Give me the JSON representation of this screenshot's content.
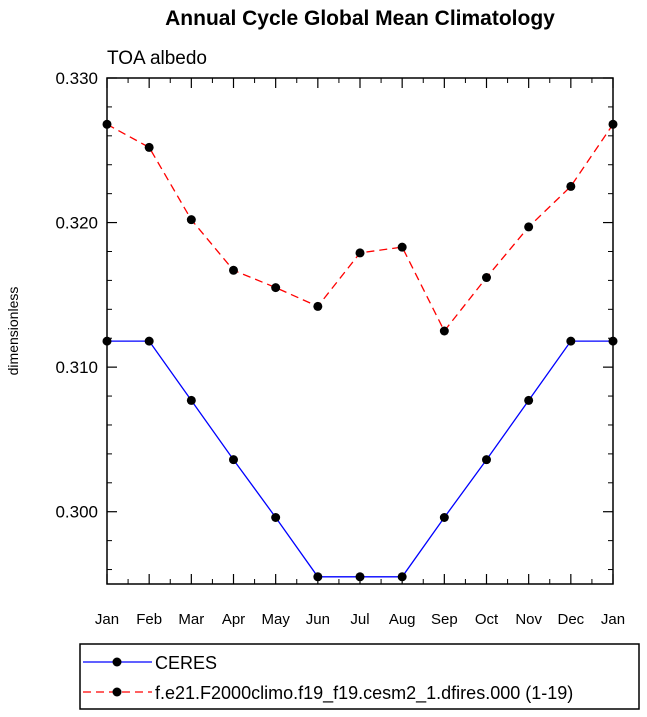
{
  "chart_data": {
    "type": "line",
    "title": "Annual Cycle Global Mean Climatology",
    "subtitle": "TOA albedo",
    "xlabel": "",
    "ylabel": "dimensionless",
    "categories": [
      "Jan",
      "Feb",
      "Mar",
      "Apr",
      "May",
      "Jun",
      "Jul",
      "Aug",
      "Sep",
      "Oct",
      "Nov",
      "Dec",
      "Jan"
    ],
    "ylim": [
      0.295,
      0.33
    ],
    "yticks": [
      "0.300",
      "0.310",
      "0.320",
      "0.330"
    ],
    "grid": false,
    "legend_placement": "bottom",
    "series": [
      {
        "name": "CERES",
        "color": "#0000ff",
        "dash": "solid",
        "marker": "circle",
        "values": [
          0.3118,
          0.3118,
          0.3077,
          0.3036,
          0.2996,
          0.2955,
          0.2955,
          0.2955,
          0.2996,
          0.3036,
          0.3077,
          0.3118,
          0.3118
        ]
      },
      {
        "name": "f.e21.F2000climo.f19_f19.cesm2_1.dfires.000 (1-19)",
        "color": "#ff0000",
        "dash": "dashed",
        "marker": "circle",
        "values": [
          0.3268,
          0.3252,
          0.3202,
          0.3167,
          0.3155,
          0.3142,
          0.3179,
          0.3183,
          0.3125,
          0.3162,
          0.3197,
          0.3225,
          0.3268
        ]
      }
    ]
  }
}
